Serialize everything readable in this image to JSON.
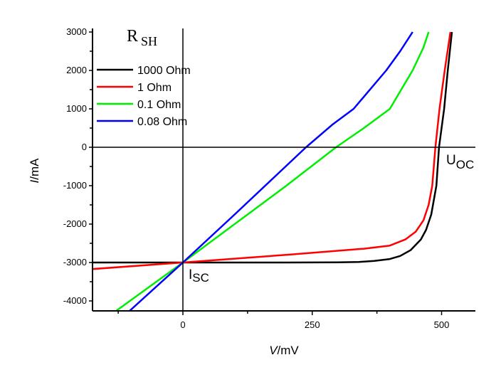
{
  "chart_data": {
    "type": "line",
    "xlabel": {
      "italic": "V",
      "rest": "/mV"
    },
    "ylabel": {
      "italic": "I",
      "rest": "/mA"
    },
    "xlim": [
      -175,
      565
    ],
    "ylim": [
      -4260,
      3050
    ],
    "xticks": [
      0,
      250,
      500
    ],
    "xtick_labels": [
      "0",
      "250",
      "500"
    ],
    "yticks": [
      3000,
      2000,
      1000,
      0,
      -1000,
      -2000,
      -3000,
      -4000
    ],
    "ytick_labels": [
      "3000",
      "2000",
      "1000",
      "0",
      "-1000",
      "-2000",
      "-3000",
      "-4000"
    ],
    "grid": false,
    "legend_title": {
      "main": "R",
      "sub": "SH"
    },
    "legend_placement": "top-left",
    "annotations": [
      {
        "main": "U",
        "sub": "OC"
      },
      {
        "main": "I",
        "sub": "SC"
      }
    ],
    "series": [
      {
        "name": "1000 Ohm",
        "color": "#000000",
        "x": [
          -175,
          0,
          100,
          200,
          300,
          340,
          370,
          400,
          420,
          440,
          460,
          470,
          480,
          490,
          495,
          505,
          512,
          520
        ],
        "y": [
          -3000,
          -3000,
          -3000,
          -3000,
          -2995,
          -2985,
          -2960,
          -2910,
          -2830,
          -2680,
          -2400,
          -2150,
          -1750,
          -1000,
          0,
          1000,
          2000,
          3000
        ]
      },
      {
        "name": "1 Ohm",
        "color": "#ff0000",
        "x": [
          -175,
          0,
          200,
          350,
          400,
          430,
          450,
          465,
          475,
          482,
          488,
          496,
          506,
          517
        ],
        "y": [
          -3170,
          -3000,
          -2800,
          -2640,
          -2560,
          -2400,
          -2200,
          -1900,
          -1500,
          -1000,
          0,
          1000,
          2000,
          3000
        ]
      },
      {
        "name": "0.1 Ohm",
        "color": "#00ee00",
        "x": [
          -129,
          0,
          100,
          200,
          296,
          350,
          400,
          444,
          465,
          475
        ],
        "y": [
          -4260,
          -3000,
          -2000,
          -1000,
          0,
          500,
          1000,
          2000,
          2600,
          3000
        ]
      },
      {
        "name": "0.08 Ohm",
        "color": "#0000ff",
        "x": [
          -103,
          0,
          100,
          238,
          290,
          330,
          393,
          420,
          444
        ],
        "y": [
          -4260,
          -3000,
          -1750,
          0,
          600,
          1000,
          2000,
          2500,
          3000
        ]
      }
    ]
  }
}
